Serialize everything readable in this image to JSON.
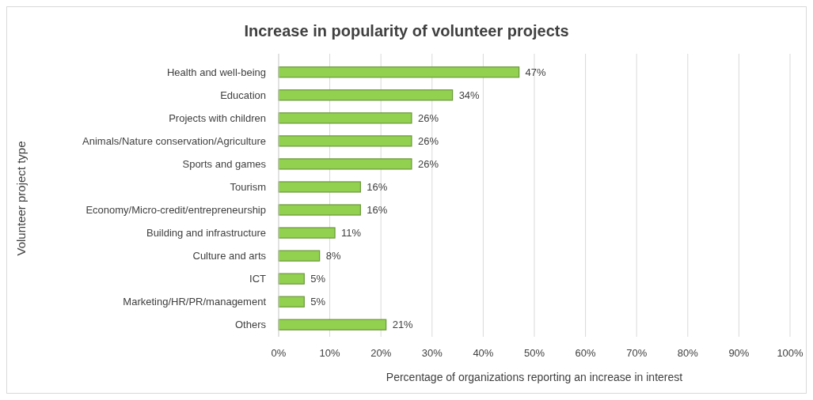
{
  "chart_data": {
    "type": "bar",
    "orientation": "horizontal",
    "title": "Increase in popularity of volunteer projects",
    "xlabel": "Percentage of organizations reporting an increase in interest",
    "ylabel": "Volunteer project type",
    "categories": [
      "Health and well-being",
      "Education",
      "Projects with children",
      "Animals/Nature conservation/Agriculture",
      "Sports and games",
      "Tourism",
      "Economy/Micro-credit/entrepreneurship",
      "Building and infrastructure",
      "Culture and arts",
      "ICT",
      "Marketing/HR/PR/management",
      "Others"
    ],
    "values": [
      47,
      34,
      26,
      26,
      26,
      16,
      16,
      11,
      8,
      5,
      5,
      21
    ],
    "value_labels": [
      "47%",
      "34%",
      "26%",
      "26%",
      "26%",
      "16%",
      "16%",
      "11%",
      "8%",
      "5%",
      "5%",
      "21%"
    ],
    "color": "#92d050",
    "grid": "x",
    "xlim": [
      0,
      100
    ],
    "xticks": [
      {
        "value": 0,
        "label": "0%"
      },
      {
        "value": 10,
        "label": "10%"
      },
      {
        "value": 20,
        "label": "20%"
      },
      {
        "value": 30,
        "label": "30%"
      },
      {
        "value": 40,
        "label": "40%"
      },
      {
        "value": 50,
        "label": "50%"
      },
      {
        "value": 60,
        "label": "60%"
      },
      {
        "value": 70,
        "label": "70%"
      },
      {
        "value": 80,
        "label": "80%"
      },
      {
        "value": 90,
        "label": "90%"
      },
      {
        "value": 100,
        "label": "100%"
      }
    ]
  }
}
